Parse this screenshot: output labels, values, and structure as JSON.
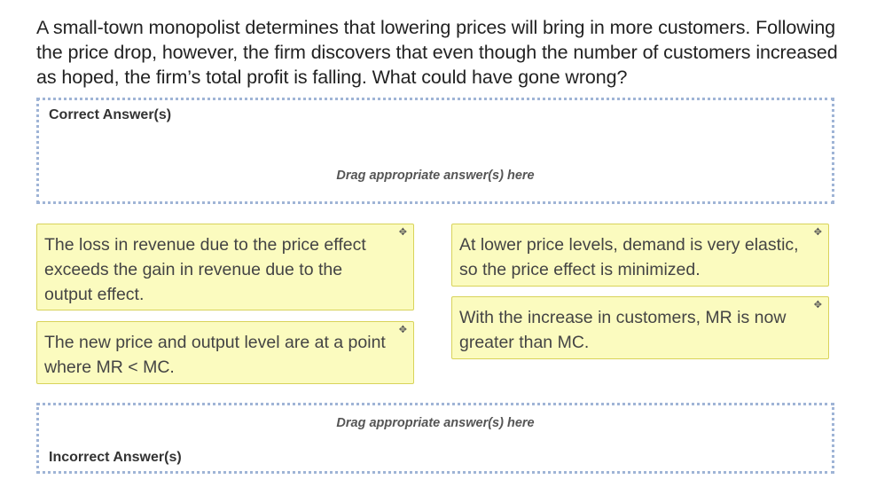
{
  "question": {
    "text": "A small-town monopolist determines that lowering prices will bring in more customers. Following the price drop, however, the firm discovers that even though the number of customers increased as hoped, the firm’s total profit is falling. What could have gone wrong?"
  },
  "correct_zone": {
    "title": "Correct Answer(s)",
    "hint": "Drag appropriate answer(s) here"
  },
  "incorrect_zone": {
    "title": "Incorrect Answer(s)",
    "hint": "Drag appropriate answer(s) here"
  },
  "cards": [
    {
      "text": "The loss in revenue due to the price effect exceeds the gain in revenue due to the output effect.",
      "icon": "move-icon"
    },
    {
      "text": "The new price and output level are at a point where MR < MC.",
      "icon": "move-icon"
    },
    {
      "text": "At lower price levels, demand is very elastic, so the price effect is minimized.",
      "icon": "move-icon"
    },
    {
      "text": "With the increase in customers, MR is now greater than MC.",
      "icon": "move-icon"
    }
  ],
  "colors": {
    "card_background": "#fbfbbf",
    "card_border": "#d8d35a",
    "zone_border": "#9fb4d6"
  }
}
